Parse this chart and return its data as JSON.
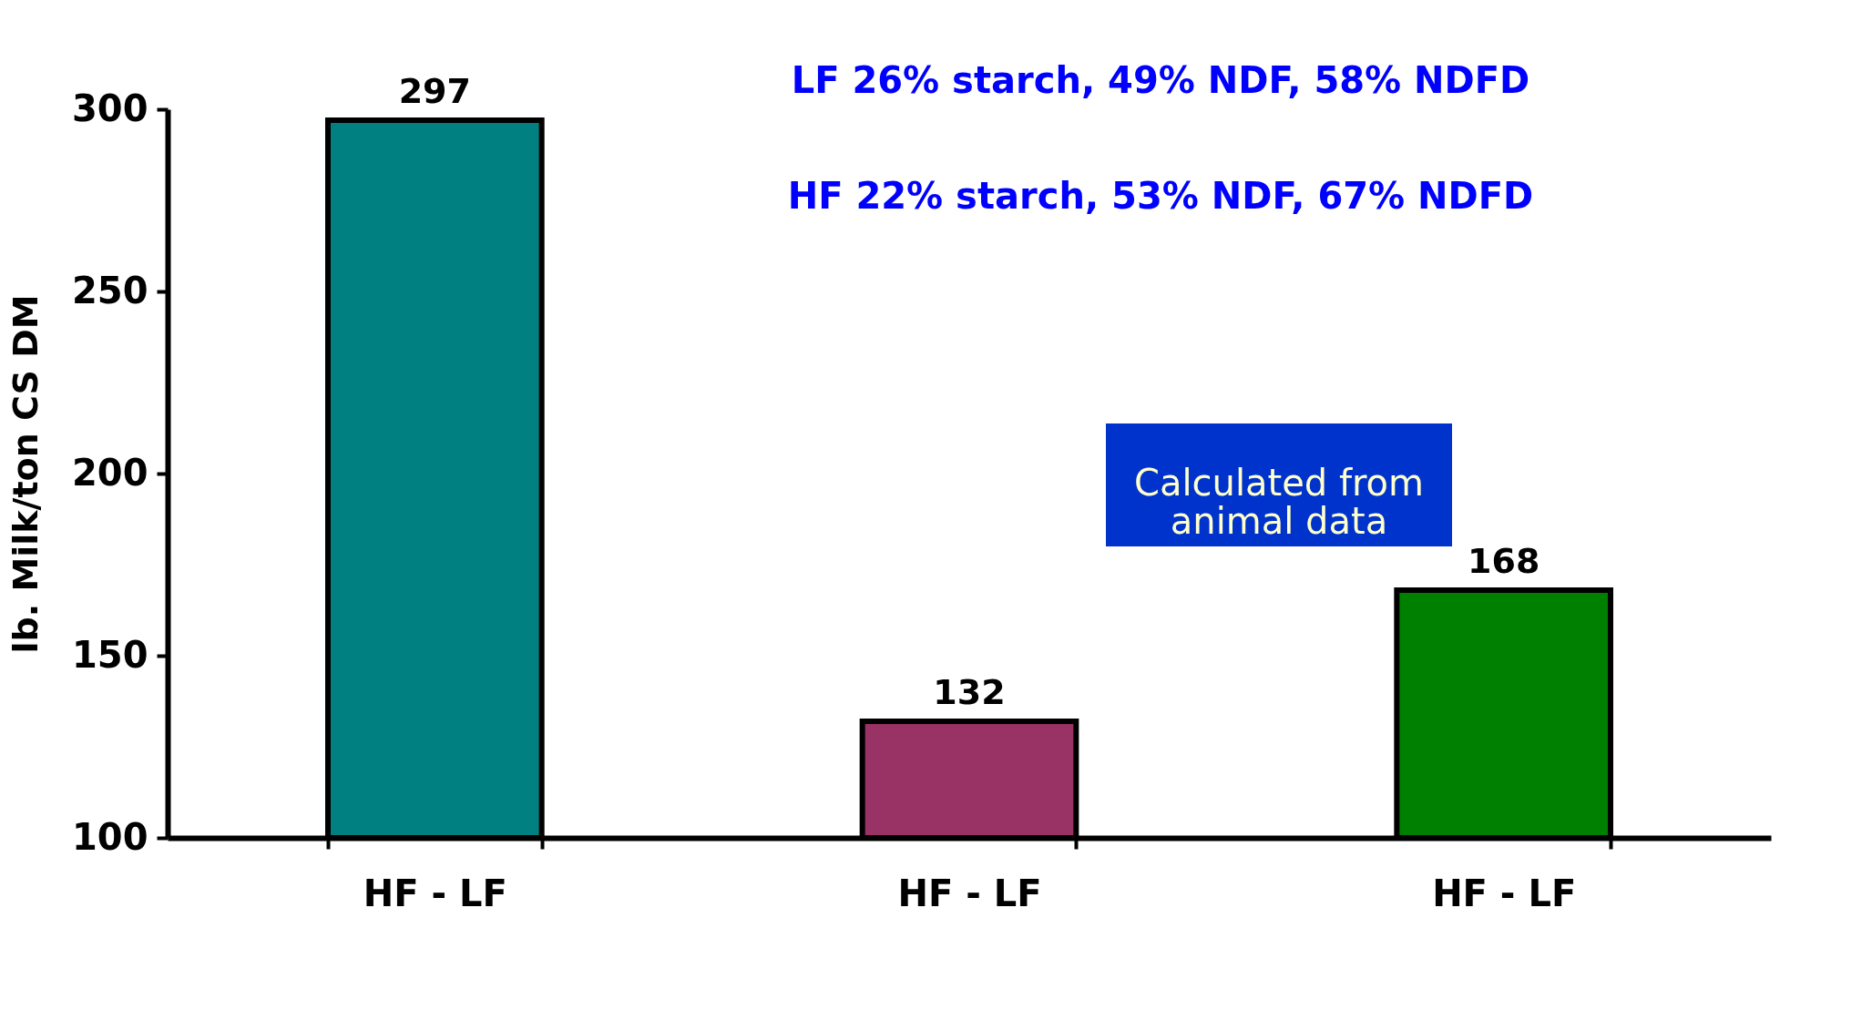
{
  "chart_data": {
    "type": "bar",
    "ylabel": "lb. Milk/ton CS DM",
    "categories": [
      "HF - LF",
      "HF - LF",
      "HF - LF"
    ],
    "values": [
      297,
      132,
      168
    ],
    "colors": [
      "#008080",
      "#993366",
      "#008000"
    ],
    "ylim": [
      100,
      300
    ],
    "yticks": [
      100,
      150,
      200,
      250,
      300
    ],
    "grid": false,
    "data_labels": true,
    "annotations": [
      "LF 26% starch, 49% NDF, 58% NDFD",
      "HF 22% starch, 53% NDF, 67% NDFD",
      "Calculated from\nanimal data"
    ]
  }
}
